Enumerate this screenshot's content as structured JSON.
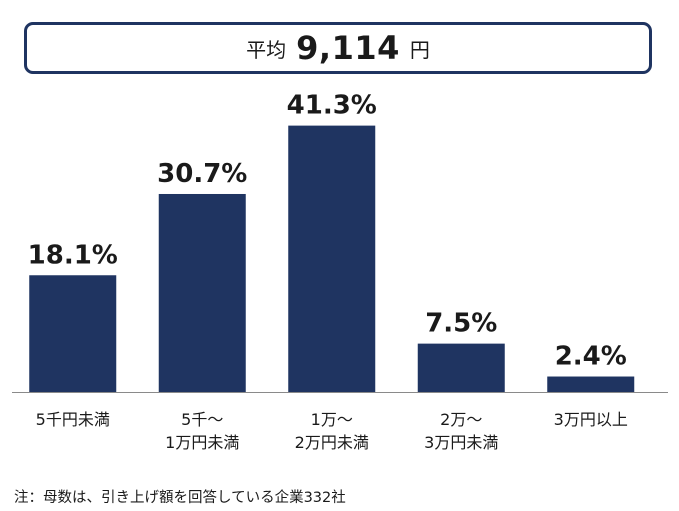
{
  "average": {
    "label": "平均",
    "value": "9,114",
    "unit": "円"
  },
  "chart_data": {
    "type": "bar",
    "categories": [
      "5千円未満",
      "5千～\n1万円未満",
      "1万～\n2万円未満",
      "2万～\n3万円未満",
      "3万円以上"
    ],
    "values": [
      18.1,
      30.7,
      41.3,
      7.5,
      2.4
    ],
    "value_labels": [
      "18.1%",
      "30.7%",
      "41.3%",
      "7.5%",
      "2.4%"
    ],
    "unit": "%",
    "title": "",
    "xlabel": "",
    "ylabel": "",
    "grid": false,
    "legend": "none",
    "bar_color": "#1f3461"
  },
  "footnote": "注：母数は、引き上げ額を回答している企業332社"
}
